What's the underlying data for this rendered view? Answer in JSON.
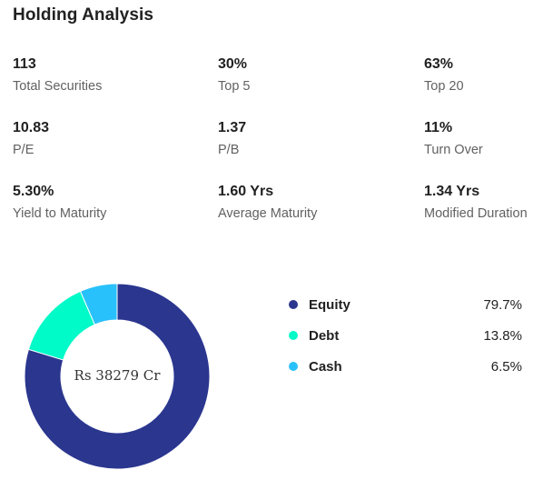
{
  "header": {
    "title": "Holding Analysis"
  },
  "stats": [
    {
      "value": "113",
      "label": "Total Securities"
    },
    {
      "value": "30%",
      "label": "Top 5"
    },
    {
      "value": "63%",
      "label": "Top 20"
    },
    {
      "value": "10.83",
      "label": "P/E"
    },
    {
      "value": "1.37",
      "label": "P/B"
    },
    {
      "value": "11%",
      "label": "Turn Over"
    },
    {
      "value": "5.30%",
      "label": "Yield to Maturity"
    },
    {
      "value": "1.60 Yrs",
      "label": "Average Maturity"
    },
    {
      "value": "1.34 Yrs",
      "label": "Modified Duration"
    }
  ],
  "chart_data": {
    "type": "pie",
    "variant": "donut",
    "center_label": "Rs 38279 Cr",
    "categories": [
      "Equity",
      "Debt",
      "Cash"
    ],
    "values": [
      79.7,
      13.8,
      6.5
    ],
    "value_labels": [
      "79.7%",
      "13.8%",
      "6.5%"
    ],
    "colors": [
      "#2b368f",
      "#00fac8",
      "#29c1fb"
    ],
    "start": "top",
    "direction": "clockwise",
    "legend_placement": "right"
  }
}
